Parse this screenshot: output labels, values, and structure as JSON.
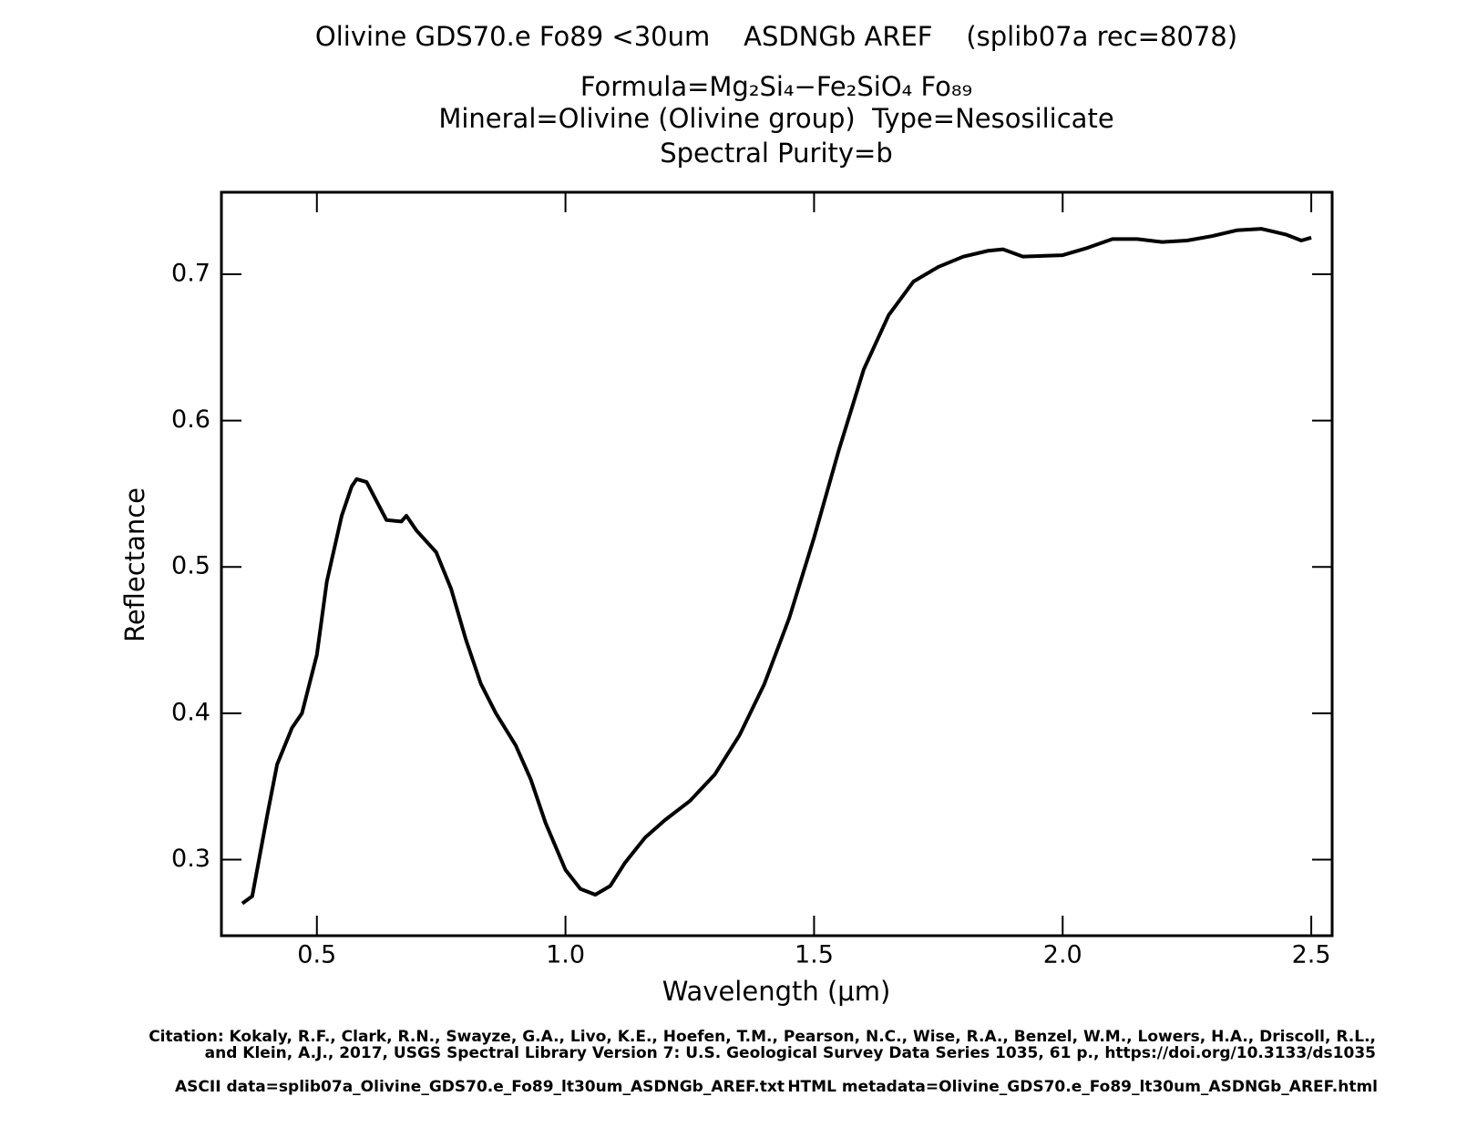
{
  "chart_data": {
    "type": "line",
    "title": "Olivine GDS70.e Fo89 <30um    ASDNGb AREF    (splib07a rec=8078)",
    "subtitle_lines": [
      "Formula=Mg₂Si₄−Fe₂SiO₄ Fo₈₉",
      "Mineral=Olivine (Olivine group)  Type=Nesosilicate",
      "Spectral Purity=b"
    ],
    "x_label": "Wavelength (μm)",
    "y_label": "Reflectance",
    "citation": [
      "Citation: Kokaly, R.F., Clark, R.N., Swayze, G.A., Livo, K.E., Hoefen, T.M., Pearson, N.C., Wise, R.A., Benzel, W.M., Lowers, H.A., Driscoll, R.L.,",
      "and Klein, A.J., 2017, USGS Spectral Library Version 7: U.S. Geological Survey Data Series 1035, 61 p., https://doi.org/10.3133/ds1035"
    ],
    "footer_left": "ASCII data=splib07a_Olivine_GDS70.e_Fo89_lt30um_ASDNGb_AREF.txt",
    "footer_right": "HTML metadata=Olivine_GDS70.e_Fo89_lt30um_ASDNGb_AREF.html",
    "xlim": [
      0.308,
      2.542
    ],
    "ylim": [
      0.248,
      0.756
    ],
    "xticks": [
      0.5,
      {
        "value": 1.0,
        "label": "1.0"
      },
      1.5,
      {
        "value": 2.0,
        "label": "2.0"
      },
      2.5
    ],
    "yticks": [
      0.3,
      0.4,
      0.5,
      0.6,
      0.7
    ],
    "series": [
      {
        "color": "#000000",
        "x": [
          0.35,
          0.37,
          0.4,
          0.42,
          0.45,
          0.47,
          0.5,
          0.52,
          0.55,
          0.57,
          0.58,
          0.6,
          0.62,
          0.64,
          0.67,
          0.68,
          0.7,
          0.74,
          0.77,
          0.8,
          0.83,
          0.86,
          0.9,
          0.93,
          0.96,
          1.0,
          1.03,
          1.06,
          1.09,
          1.12,
          1.16,
          1.2,
          1.25,
          1.3,
          1.35,
          1.4,
          1.45,
          1.5,
          1.55,
          1.6,
          1.65,
          1.7,
          1.75,
          1.8,
          1.85,
          1.88,
          1.92,
          2.0,
          2.05,
          2.1,
          2.15,
          2.2,
          2.25,
          2.3,
          2.35,
          2.4,
          2.45,
          2.48,
          2.5
        ],
        "values": [
          0.27,
          0.275,
          0.33,
          0.365,
          0.39,
          0.4,
          0.44,
          0.49,
          0.535,
          0.555,
          0.56,
          0.558,
          0.545,
          0.532,
          0.531,
          0.535,
          0.525,
          0.51,
          0.485,
          0.45,
          0.42,
          0.4,
          0.378,
          0.355,
          0.325,
          0.293,
          0.28,
          0.276,
          0.282,
          0.298,
          0.315,
          0.327,
          0.34,
          0.358,
          0.385,
          0.42,
          0.465,
          0.52,
          0.58,
          0.635,
          0.672,
          0.695,
          0.705,
          0.712,
          0.716,
          0.717,
          0.712,
          0.713,
          0.718,
          0.724,
          0.724,
          0.722,
          0.723,
          0.726,
          0.73,
          0.731,
          0.727,
          0.723,
          0.725
        ]
      }
    ]
  }
}
